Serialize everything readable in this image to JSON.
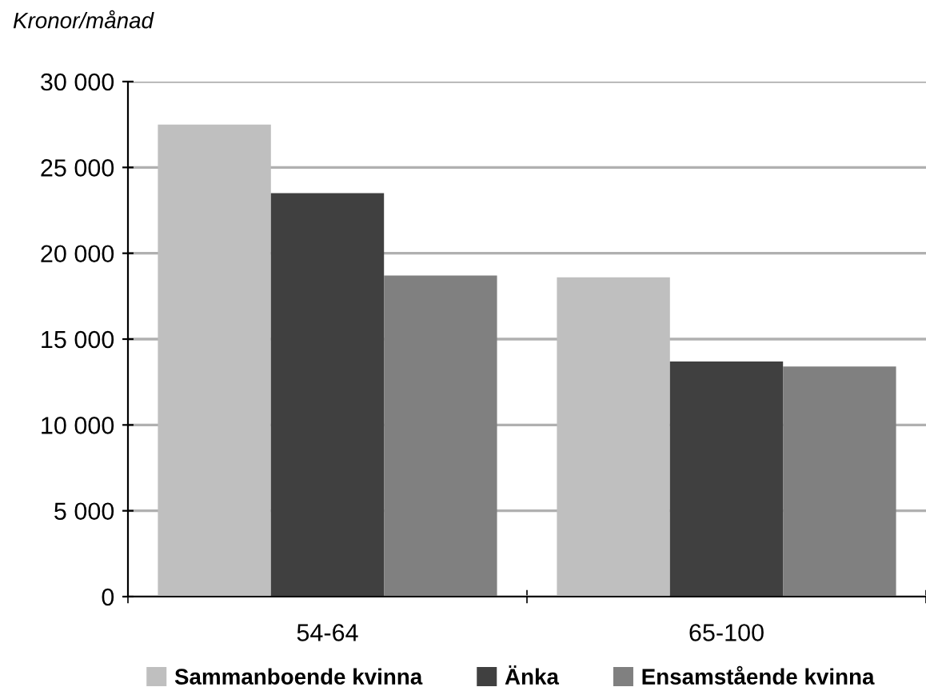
{
  "chart_data": {
    "type": "bar",
    "ylabel": "Kronor/månad",
    "categories": [
      "54-64",
      "65-100"
    ],
    "series": [
      {
        "name": "Sammanboende kvinna",
        "color": "#bfbfbf",
        "values": [
          27500,
          18600
        ]
      },
      {
        "name": "Änka",
        "color": "#404040",
        "values": [
          23500,
          13700
        ]
      },
      {
        "name": "Ensamstående kvinna",
        "color": "#808080",
        "values": [
          18700,
          13400
        ]
      }
    ],
    "ylim": [
      0,
      30000
    ],
    "yticks": [
      {
        "value": 0,
        "label": "0"
      },
      {
        "value": 5000,
        "label": "5 000"
      },
      {
        "value": 10000,
        "label": "10 000"
      },
      {
        "value": 15000,
        "label": "15 000"
      },
      {
        "value": 20000,
        "label": "20 000"
      },
      {
        "value": 25000,
        "label": "25 000"
      },
      {
        "value": 30000,
        "label": "30 000"
      }
    ],
    "grid": "y",
    "legend": "bottom"
  }
}
